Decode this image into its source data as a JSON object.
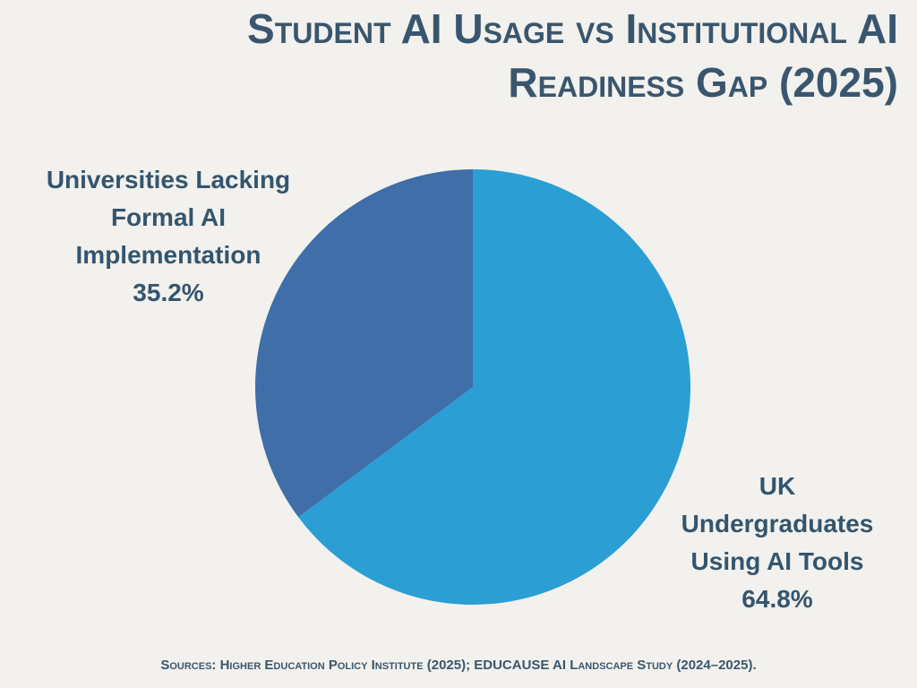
{
  "chart_data": {
    "type": "pie",
    "title": "Student AI Usage vs Institutional AI Readiness Gap (2025)",
    "categories": [
      "UK Undergraduates Using AI Tools",
      "Universities Lacking Formal AI Implementation"
    ],
    "values": [
      64.8,
      35.2
    ],
    "value_labels": [
      "64.8%",
      "35.2%"
    ],
    "colors": [
      "#2b9ed4",
      "#3f6ea8"
    ],
    "source": "Sources: Higher Education Policy Institute (2025); EDUCAUSE AI Landscape Study (2024–2025)."
  }
}
